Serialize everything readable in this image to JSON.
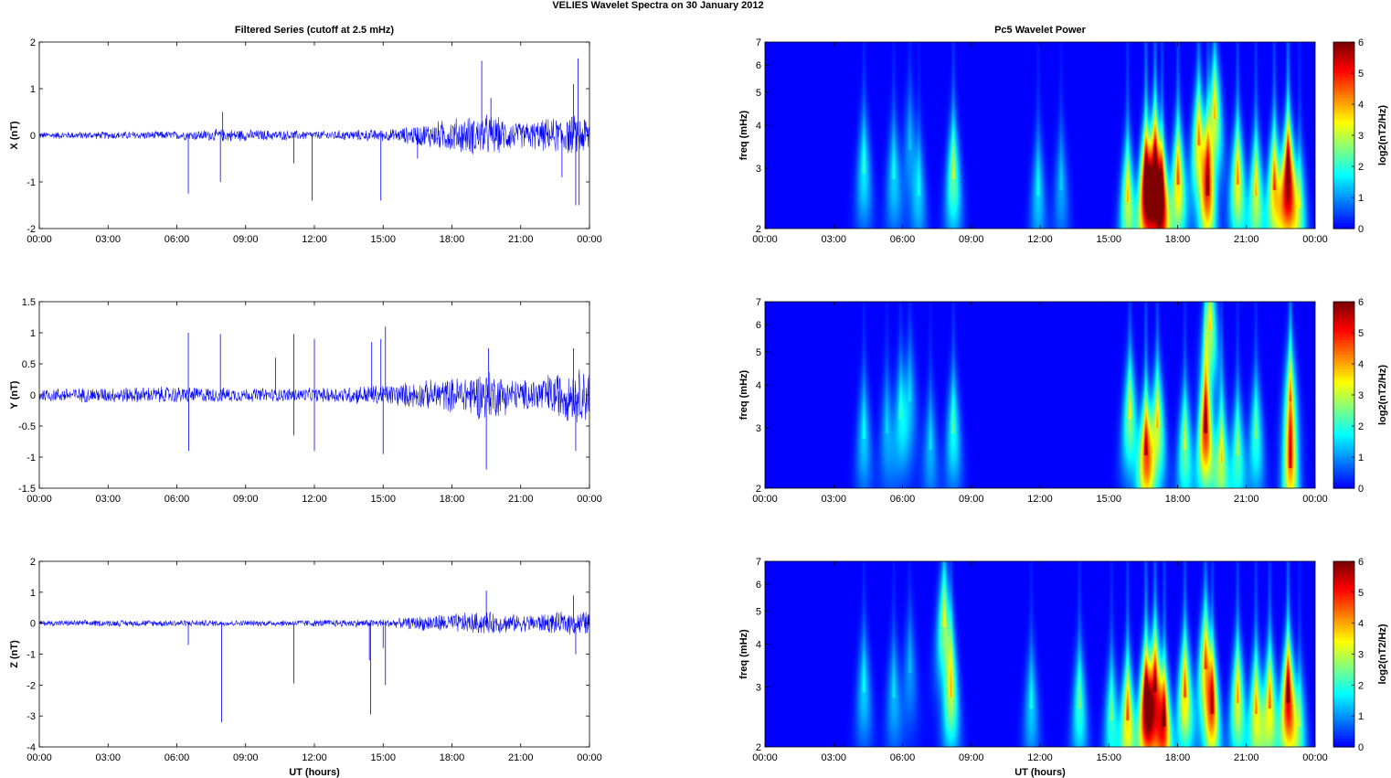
{
  "chart_data": {
    "type": "line",
    "title": "VELIES Wavelet Spectra on 30 January   2012",
    "left_title": "Filtered Series (cutoff at 2.5 mHz)",
    "right_title": "Pc5 Wavelet Power",
    "xlabel": "UT (hours)",
    "x_tick_labels": [
      "00:00",
      "03:00",
      "06:00",
      "09:00",
      "12:00",
      "15:00",
      "18:00",
      "21:00",
      "00:00"
    ],
    "xlim_hours": [
      0,
      24
    ],
    "series_color": "#0000ff",
    "time_series": [
      {
        "ylabel": "X (nT)",
        "ylim": [
          -2,
          2
        ],
        "y_ticks": [
          -2,
          -1,
          0,
          1,
          2
        ],
        "y_tick_labels": [
          "-2",
          "-1",
          "0",
          "1",
          "2"
        ],
        "base_amplitude": 0.08,
        "activity": [
          [
            0,
            0.08
          ],
          [
            6,
            0.1
          ],
          [
            8,
            0.15
          ],
          [
            12,
            0.1
          ],
          [
            15.5,
            0.15
          ],
          [
            18,
            0.4
          ],
          [
            19.5,
            0.5
          ],
          [
            21,
            0.3
          ],
          [
            23,
            0.45
          ],
          [
            24,
            0.5
          ]
        ],
        "spikes": [
          {
            "t": 6.5,
            "v": -1.25
          },
          {
            "t": 7.9,
            "v": -1.0
          },
          {
            "t": 8.0,
            "v": 0.5
          },
          {
            "t": 11.1,
            "v": -0.6
          },
          {
            "t": 11.9,
            "v": -1.4
          },
          {
            "t": 14.9,
            "v": -1.4
          },
          {
            "t": 16.5,
            "v": -0.5
          },
          {
            "t": 19.3,
            "v": 1.6
          },
          {
            "t": 19.7,
            "v": 0.8
          },
          {
            "t": 22.8,
            "v": -0.9
          },
          {
            "t": 23.3,
            "v": 1.1
          },
          {
            "t": 23.4,
            "v": -1.5
          },
          {
            "t": 23.5,
            "v": 1.65
          },
          {
            "t": 23.55,
            "v": -1.5
          }
        ]
      },
      {
        "ylabel": "Y (nT)",
        "ylim": [
          -1.5,
          1.5
        ],
        "y_ticks": [
          -1.5,
          -1,
          -0.5,
          0,
          0.5,
          1,
          1.5
        ],
        "y_tick_labels": [
          "-1.5",
          "-1",
          "-0.5",
          "0",
          "0.5",
          "1",
          "1.5"
        ],
        "base_amplitude": 0.12,
        "activity": [
          [
            0,
            0.12
          ],
          [
            6,
            0.15
          ],
          [
            9,
            0.12
          ],
          [
            12,
            0.12
          ],
          [
            15.5,
            0.2
          ],
          [
            18,
            0.3
          ],
          [
            19.5,
            0.45
          ],
          [
            21,
            0.25
          ],
          [
            23,
            0.45
          ],
          [
            24,
            0.5
          ]
        ],
        "spikes": [
          {
            "t": 6.5,
            "v": 1.0
          },
          {
            "t": 6.52,
            "v": -0.9
          },
          {
            "t": 7.9,
            "v": 0.98
          },
          {
            "t": 10.3,
            "v": 0.6
          },
          {
            "t": 11.1,
            "v": 0.98
          },
          {
            "t": 11.1,
            "v": -0.65
          },
          {
            "t": 12.0,
            "v": 0.9
          },
          {
            "t": 12.0,
            "v": -0.9
          },
          {
            "t": 14.5,
            "v": 0.85
          },
          {
            "t": 14.9,
            "v": 0.9
          },
          {
            "t": 15.1,
            "v": 1.1
          },
          {
            "t": 15.0,
            "v": -0.95
          },
          {
            "t": 19.5,
            "v": -1.2
          },
          {
            "t": 19.6,
            "v": 0.75
          },
          {
            "t": 23.3,
            "v": 0.75
          },
          {
            "t": 23.4,
            "v": -0.9
          }
        ]
      },
      {
        "ylabel": "Z (nT)",
        "ylim": [
          -4,
          2
        ],
        "y_ticks": [
          -4,
          -3,
          -2,
          -1,
          0,
          1,
          2
        ],
        "y_tick_labels": [
          "-4",
          "-3",
          "-2",
          "-1",
          "0",
          "1",
          "2"
        ],
        "base_amplitude": 0.1,
        "activity": [
          [
            0,
            0.1
          ],
          [
            6,
            0.12
          ],
          [
            9,
            0.1
          ],
          [
            15.5,
            0.15
          ],
          [
            17,
            0.3
          ],
          [
            19.5,
            0.4
          ],
          [
            21,
            0.3
          ],
          [
            23,
            0.4
          ],
          [
            24,
            0.45
          ]
        ],
        "spikes": [
          {
            "t": 6.5,
            "v": -0.7
          },
          {
            "t": 7.95,
            "v": -3.2
          },
          {
            "t": 11.1,
            "v": -1.95
          },
          {
            "t": 14.4,
            "v": -1.2
          },
          {
            "t": 14.45,
            "v": -2.95
          },
          {
            "t": 15.1,
            "v": -2.0
          },
          {
            "t": 15.0,
            "v": -0.8
          },
          {
            "t": 19.5,
            "v": 1.05
          },
          {
            "t": 23.3,
            "v": 0.9
          },
          {
            "t": 23.4,
            "v": -1.0
          }
        ]
      }
    ],
    "wavelet_panels": [
      {
        "ylabel": "freq (mHz)",
        "yscale": "log",
        "ylim_mHz": [
          2,
          7
        ],
        "y_ticks": [
          2,
          3,
          4,
          5,
          6,
          7
        ],
        "y_tick_labels": [
          "2",
          "3",
          "4",
          "5",
          "6",
          "7"
        ],
        "colorbar": {
          "label": "log2(nT2/Hz)",
          "range": [
            0,
            6
          ],
          "ticks": [
            "0",
            "1",
            "2",
            "3",
            "4",
            "5",
            "6"
          ]
        },
        "bursts": [
          {
            "t": 4.3,
            "f": 2.9,
            "p": 1.6
          },
          {
            "t": 5.6,
            "f": 2.8,
            "p": 1.4
          },
          {
            "t": 6.3,
            "f": 3.4,
            "p": 1.0
          },
          {
            "t": 6.7,
            "f": 2.5,
            "p": 1.2
          },
          {
            "t": 8.2,
            "f": 2.8,
            "p": 2.4
          },
          {
            "t": 11.9,
            "f": 2.5,
            "p": 1.4
          },
          {
            "t": 12.9,
            "f": 2.6,
            "p": 1.1
          },
          {
            "t": 15.8,
            "f": 2.4,
            "p": 3.0
          },
          {
            "t": 16.6,
            "f": 2.6,
            "p": 5.4
          },
          {
            "t": 17.0,
            "f": 2.9,
            "p": 5.0
          },
          {
            "t": 17.3,
            "f": 2.3,
            "p": 4.2
          },
          {
            "t": 18.0,
            "f": 2.7,
            "p": 3.6
          },
          {
            "t": 18.9,
            "f": 3.5,
            "p": 3.3
          },
          {
            "t": 19.3,
            "f": 2.5,
            "p": 3.8
          },
          {
            "t": 19.6,
            "f": 4.2,
            "p": 3.0
          },
          {
            "t": 20.6,
            "f": 2.7,
            "p": 3.3
          },
          {
            "t": 21.4,
            "f": 2.5,
            "p": 3.0
          },
          {
            "t": 22.2,
            "f": 2.6,
            "p": 3.6
          },
          {
            "t": 22.8,
            "f": 2.7,
            "p": 5.8
          },
          {
            "t": 23.3,
            "f": 2.3,
            "p": 2.0
          }
        ]
      },
      {
        "ylabel": "freq (mHz)",
        "yscale": "log",
        "ylim_mHz": [
          2,
          7
        ],
        "y_ticks": [
          2,
          3,
          4,
          5,
          6,
          7
        ],
        "y_tick_labels": [
          "2",
          "3",
          "4",
          "5",
          "6",
          "7"
        ],
        "colorbar": {
          "label": "log2(nT2/Hz)",
          "range": [
            0,
            6
          ],
          "ticks": [
            "0",
            "1",
            "2",
            "3",
            "4",
            "5",
            "6"
          ]
        },
        "bursts": [
          {
            "t": 4.3,
            "f": 2.8,
            "p": 1.4
          },
          {
            "t": 5.3,
            "f": 2.9,
            "p": 1.1
          },
          {
            "t": 5.9,
            "f": 3.2,
            "p": 1.4
          },
          {
            "t": 6.3,
            "f": 3.6,
            "p": 1.1
          },
          {
            "t": 7.2,
            "f": 2.6,
            "p": 1.2
          },
          {
            "t": 8.2,
            "f": 2.9,
            "p": 1.8
          },
          {
            "t": 15.9,
            "f": 3.2,
            "p": 2.6
          },
          {
            "t": 16.6,
            "f": 2.5,
            "p": 4.2
          },
          {
            "t": 17.1,
            "f": 3.0,
            "p": 3.0
          },
          {
            "t": 18.3,
            "f": 2.6,
            "p": 2.4
          },
          {
            "t": 19.2,
            "f": 2.9,
            "p": 4.8
          },
          {
            "t": 19.4,
            "f": 5.8,
            "p": 2.8
          },
          {
            "t": 19.9,
            "f": 2.4,
            "p": 2.8
          },
          {
            "t": 20.6,
            "f": 2.5,
            "p": 2.2
          },
          {
            "t": 21.4,
            "f": 2.8,
            "p": 2.0
          },
          {
            "t": 22.9,
            "f": 2.3,
            "p": 3.6
          },
          {
            "t": 22.9,
            "f": 3.6,
            "p": 2.4
          }
        ]
      },
      {
        "ylabel": "freq (mHz)",
        "yscale": "log",
        "ylim_mHz": [
          2,
          7
        ],
        "y_ticks": [
          2,
          3,
          4,
          5,
          6,
          7
        ],
        "y_tick_labels": [
          "2",
          "3",
          "4",
          "5",
          "6",
          "7"
        ],
        "colorbar": {
          "label": "log2(nT2/Hz)",
          "range": [
            0,
            6
          ],
          "ticks": [
            "0",
            "1",
            "2",
            "3",
            "4",
            "5",
            "6"
          ]
        },
        "bursts": [
          {
            "t": 4.3,
            "f": 2.9,
            "p": 1.4
          },
          {
            "t": 5.6,
            "f": 2.8,
            "p": 1.2
          },
          {
            "t": 6.3,
            "f": 3.3,
            "p": 1.0
          },
          {
            "t": 7.8,
            "f": 4.5,
            "p": 2.6
          },
          {
            "t": 8.1,
            "f": 2.8,
            "p": 2.6
          },
          {
            "t": 11.6,
            "f": 2.6,
            "p": 1.4
          },
          {
            "t": 13.7,
            "f": 2.6,
            "p": 2.0
          },
          {
            "t": 15.1,
            "f": 2.4,
            "p": 2.0
          },
          {
            "t": 15.8,
            "f": 2.4,
            "p": 3.6
          },
          {
            "t": 16.6,
            "f": 2.6,
            "p": 5.2
          },
          {
            "t": 17.0,
            "f": 2.9,
            "p": 4.4
          },
          {
            "t": 17.4,
            "f": 2.3,
            "p": 4.0
          },
          {
            "t": 18.3,
            "f": 2.8,
            "p": 3.6
          },
          {
            "t": 19.2,
            "f": 3.4,
            "p": 3.5
          },
          {
            "t": 19.5,
            "f": 2.5,
            "p": 3.5
          },
          {
            "t": 20.6,
            "f": 2.7,
            "p": 3.2
          },
          {
            "t": 21.4,
            "f": 2.5,
            "p": 3.2
          },
          {
            "t": 22.0,
            "f": 2.6,
            "p": 3.4
          },
          {
            "t": 22.8,
            "f": 2.7,
            "p": 5.2
          },
          {
            "t": 23.3,
            "f": 2.3,
            "p": 1.8
          }
        ]
      }
    ]
  }
}
